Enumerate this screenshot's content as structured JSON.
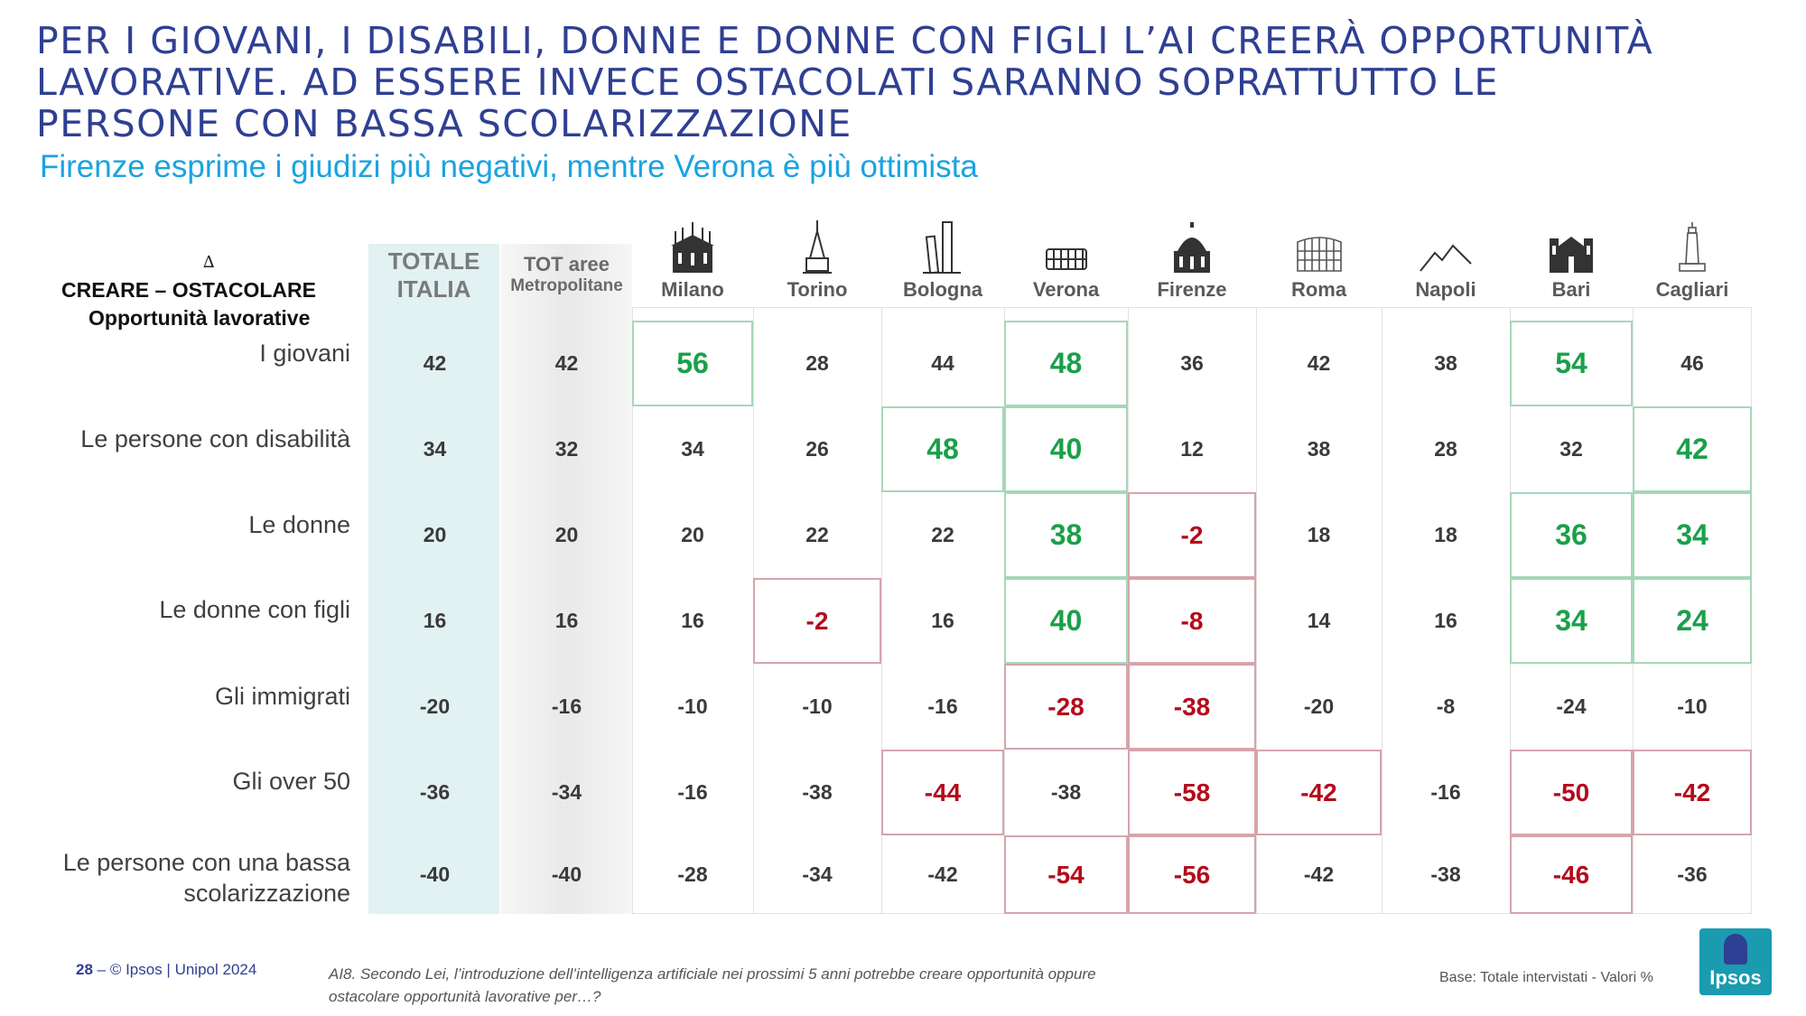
{
  "title_lines": [
    "PER I GIOVANI, I DISABILI, DONNE E DONNE CON FIGLI L’AI CREERÀ OPPORTUNITÀ",
    "LAVORATIVE. AD ESSERE INVECE OSTACOLATI SARANNO SOPRATTUTTO LE",
    "PERSONE CON BASSA SCOLARIZZAZIONE"
  ],
  "subtitle": "Firenze esprime i giudizi più negativi, mentre Verona è più ottimista",
  "table": {
    "delta_symbol": "∆",
    "header_line1": "CREARE – OSTACOLARE",
    "header_line2": "Opportunità lavorative",
    "tot_italia": [
      "TOTALE",
      "ITALIA"
    ],
    "tot_metro": [
      "TOT aree",
      "Metropolitane"
    ],
    "cities": [
      {
        "name": "Milano",
        "icon": "duomo-milano-icon"
      },
      {
        "name": "Torino",
        "icon": "mole-antonelliana-icon"
      },
      {
        "name": "Bologna",
        "icon": "due-torri-icon"
      },
      {
        "name": "Verona",
        "icon": "arena-verona-icon"
      },
      {
        "name": "Firenze",
        "icon": "duomo-firenze-icon"
      },
      {
        "name": "Roma",
        "icon": "colosseo-icon"
      },
      {
        "name": "Napoli",
        "icon": "vesuvio-icon"
      },
      {
        "name": "Bari",
        "icon": "basilica-bari-icon"
      },
      {
        "name": "Cagliari",
        "icon": "faro-cagliari-icon"
      }
    ],
    "rows": [
      {
        "label": [
          "I giovani"
        ],
        "values": [
          "42",
          "42",
          "56",
          "28",
          "44",
          "48",
          "36",
          "42",
          "38",
          "54",
          "46"
        ],
        "hl": [
          "",
          "",
          "pos",
          "",
          "",
          "pos",
          "",
          "",
          "",
          "pos",
          ""
        ]
      },
      {
        "label": [
          "Le persone con disabilità"
        ],
        "values": [
          "34",
          "32",
          "34",
          "26",
          "48",
          "40",
          "12",
          "38",
          "28",
          "32",
          "42"
        ],
        "hl": [
          "",
          "",
          "",
          "",
          "pos",
          "pos",
          "",
          "",
          "",
          "",
          "pos"
        ]
      },
      {
        "label": [
          "Le donne"
        ],
        "values": [
          "20",
          "20",
          "20",
          "22",
          "22",
          "38",
          "-2",
          "18",
          "18",
          "36",
          "34"
        ],
        "hl": [
          "",
          "",
          "",
          "",
          "",
          "pos",
          "neg",
          "",
          "",
          "pos",
          "pos"
        ]
      },
      {
        "label": [
          "Le donne con figli"
        ],
        "values": [
          "16",
          "16",
          "16",
          "-2",
          "16",
          "40",
          "-8",
          "14",
          "16",
          "34",
          "24"
        ],
        "hl": [
          "",
          "",
          "",
          "neg",
          "",
          "pos",
          "neg",
          "",
          "",
          "pos",
          "pos"
        ]
      },
      {
        "label": [
          "Gli immigrati"
        ],
        "values": [
          "-20",
          "-16",
          "-10",
          "-10",
          "-16",
          "-28",
          "-38",
          "-20",
          "-8",
          "-24",
          "-10"
        ],
        "hl": [
          "",
          "",
          "",
          "",
          "",
          "neg",
          "neg",
          "",
          "",
          "",
          ""
        ]
      },
      {
        "label": [
          "Gli over 50"
        ],
        "values": [
          "-36",
          "-34",
          "-16",
          "-38",
          "-44",
          "-38",
          "-58",
          "-42",
          "-16",
          "-50",
          "-42"
        ],
        "hl": [
          "",
          "",
          "",
          "",
          "neg",
          "",
          "neg",
          "neg",
          "",
          "neg",
          "neg"
        ]
      },
      {
        "label": [
          "Le persone con una bassa",
          "scolarizzazione"
        ],
        "values": [
          "-40",
          "-40",
          "-28",
          "-34",
          "-42",
          "-54",
          "-56",
          "-42",
          "-38",
          "-46",
          "-36"
        ],
        "hl": [
          "",
          "",
          "",
          "",
          "",
          "neg",
          "neg",
          "",
          "",
          "neg",
          ""
        ]
      }
    ]
  },
  "footer": {
    "page_number": "28",
    "copyright": " – © Ipsos | Unipol  2024",
    "question_lines": [
      "AI8. Secondo Lei, l’introduzione dell’intelligenza artificiale nei prossimi 5 anni potrebbe creare opportunità oppure",
      "ostacolare opportunità lavorative per…?"
    ],
    "base": "Base: Totale intervistati  - Valori %",
    "logo_text": "Ipsos"
  },
  "colors": {
    "title": "#2f3f93",
    "subtitle": "#1aa3e0",
    "positive": "#1aa04a",
    "negative": "#b40a1c"
  }
}
